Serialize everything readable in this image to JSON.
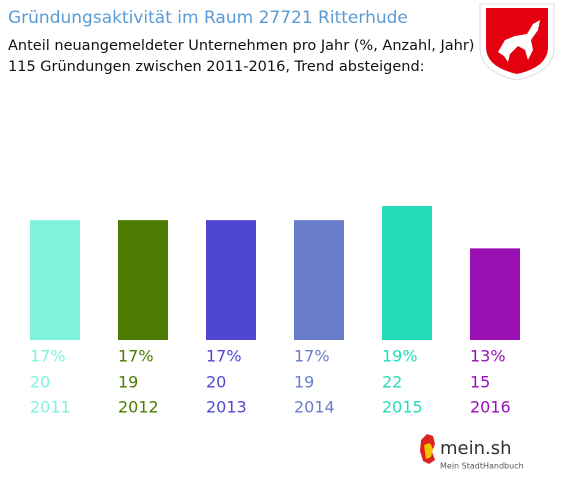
{
  "chart_data": {
    "type": "bar",
    "title": "Gründungsaktivität im Raum 27721 Ritterhude",
    "subtitles": [
      "Anteil neuangemeldeter Unternehmen pro Jahr (%, Anzahl, Jahr)",
      "115 Gründungen zwischen 2011-2016, Trend absteigend:"
    ],
    "categories": [
      "2011",
      "2012",
      "2013",
      "2014",
      "2015",
      "2016"
    ],
    "values": [
      17,
      17,
      17,
      17,
      19,
      13
    ],
    "value_labels": [
      "17%",
      "17%",
      "17%",
      "17%",
      "19%",
      "13%"
    ],
    "counts": [
      20,
      19,
      20,
      19,
      22,
      15
    ],
    "colors": [
      "#7ff2de",
      "#4b7b00",
      "#5046d4",
      "#6a7ccc",
      "#26dbb9",
      "#9a10b4"
    ]
  },
  "logo": {
    "name": "mein.sh",
    "tagline": "Mein StadtHandbuch"
  }
}
